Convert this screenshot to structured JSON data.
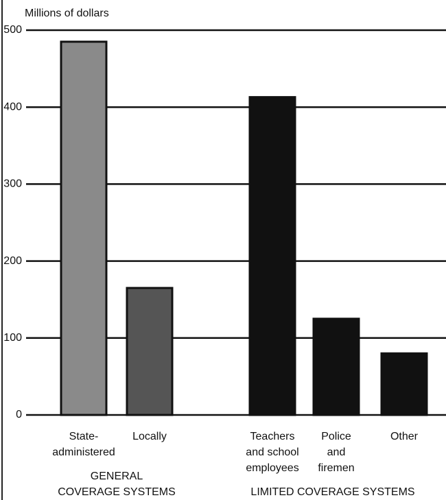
{
  "chart_data": {
    "type": "bar",
    "y_label": "Millions of dollars",
    "categories": [
      [
        "State-",
        "administered"
      ],
      [
        "Locally"
      ],
      [
        "Teachers",
        "and school",
        "employees"
      ],
      [
        "Police",
        "and",
        "firemen"
      ],
      [
        "Other"
      ]
    ],
    "values": [
      485,
      165,
      413,
      125,
      80
    ],
    "colors": [
      "#8a8a8a",
      "#555555",
      "#111111",
      "#111111",
      "#111111"
    ],
    "groups": [
      {
        "label": [
          "GENERAL",
          "COVERAGE SYSTEMS"
        ]
      },
      {
        "label": [
          "LIMITED COVERAGE SYSTEMS"
        ]
      }
    ],
    "ylim": [
      0,
      500
    ],
    "yticks": [
      0,
      100,
      200,
      300,
      400,
      500
    ],
    "grid": true
  }
}
